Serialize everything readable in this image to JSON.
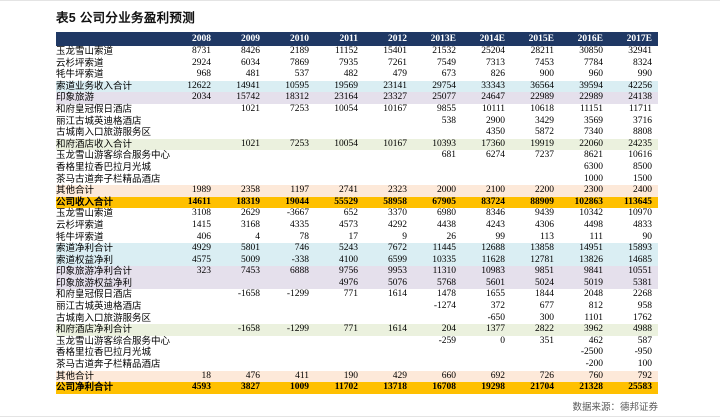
{
  "title": "表5  公司分业务盈利预测",
  "source": "数据来源：德邦证券",
  "colors": {
    "header_bg": "#1F3864",
    "header_text": "#ffffff",
    "band_blue": "#DAEEF3",
    "band_purple": "#E5E0EC",
    "band_green": "#EBF1DE",
    "band_peach": "#FDE9D9",
    "band_gold": "#FFC000"
  },
  "table": {
    "columns": [
      "2008",
      "2009",
      "2010",
      "2011",
      "2012",
      "2013E",
      "2014E",
      "2015E",
      "2016E",
      "2017E"
    ],
    "rows": [
      {
        "label": "玉龙雪山索道",
        "style": "plain",
        "values": [
          "8731",
          "8426",
          "2189",
          "11152",
          "15401",
          "21532",
          "25204",
          "28211",
          "30850",
          "32941"
        ]
      },
      {
        "label": "云杉坪索道",
        "style": "plain",
        "values": [
          "2924",
          "6034",
          "7869",
          "7935",
          "7261",
          "7549",
          "7313",
          "7453",
          "7784",
          "8324"
        ]
      },
      {
        "label": "牦牛坪索道",
        "style": "plain",
        "values": [
          "968",
          "481",
          "537",
          "482",
          "479",
          "673",
          "826",
          "900",
          "960",
          "990"
        ]
      },
      {
        "label": "索道业务收入合计",
        "style": "blue",
        "values": [
          "12622",
          "14941",
          "10595",
          "19569",
          "23141",
          "29754",
          "33343",
          "36564",
          "39594",
          "42256"
        ]
      },
      {
        "label": "印象旅游",
        "style": "purple",
        "values": [
          "2034",
          "15742",
          "18312",
          "23164",
          "23327",
          "25077",
          "24647",
          "22989",
          "22989",
          "24138"
        ]
      },
      {
        "label": "和府皇冠假日酒店",
        "style": "plain",
        "values": [
          "",
          "1021",
          "7253",
          "10054",
          "10167",
          "9855",
          "10111",
          "10618",
          "11151",
          "11711"
        ]
      },
      {
        "label": "丽江古城英迪格酒店",
        "style": "plain",
        "values": [
          "",
          "",
          "",
          "",
          "",
          "538",
          "2900",
          "3429",
          "3569",
          "3716"
        ]
      },
      {
        "label": "古城南入口旅游服务区",
        "style": "plain",
        "values": [
          "",
          "",
          "",
          "",
          "",
          "",
          "4350",
          "5872",
          "7340",
          "8808"
        ]
      },
      {
        "label": "和府酒店收入合计",
        "style": "green",
        "values": [
          "",
          "1021",
          "7253",
          "10054",
          "10167",
          "10393",
          "17360",
          "19919",
          "22060",
          "24235"
        ]
      },
      {
        "label": "玉龙雪山游客综合服务中心",
        "style": "plain",
        "values": [
          "",
          "",
          "",
          "",
          "",
          "681",
          "6274",
          "7237",
          "8621",
          "10616"
        ]
      },
      {
        "label": "香格里拉香巴拉月光城",
        "style": "plain",
        "values": [
          "",
          "",
          "",
          "",
          "",
          "",
          "",
          "",
          "6300",
          "8500"
        ]
      },
      {
        "label": "茶马古道奔子栏精品酒店",
        "style": "plain",
        "values": [
          "",
          "",
          "",
          "",
          "",
          "",
          "",
          "",
          "1000",
          "1500"
        ]
      },
      {
        "label": "其他合计",
        "style": "peach",
        "values": [
          "1989",
          "2358",
          "1197",
          "2741",
          "2323",
          "2000",
          "2100",
          "2200",
          "2300",
          "2400"
        ]
      },
      {
        "label": "公司收入合计",
        "style": "gold",
        "values": [
          "14611",
          "18319",
          "19044",
          "55529",
          "58958",
          "67905",
          "83724",
          "88909",
          "102863",
          "113645"
        ]
      },
      {
        "label": "玉龙雪山索道",
        "style": "plain",
        "values": [
          "3108",
          "2629",
          "-3667",
          "652",
          "3370",
          "6980",
          "8346",
          "9439",
          "10342",
          "10970"
        ]
      },
      {
        "label": "云杉坪索道",
        "style": "plain",
        "values": [
          "1415",
          "3168",
          "4335",
          "4573",
          "4292",
          "4438",
          "4243",
          "4306",
          "4498",
          "4833"
        ]
      },
      {
        "label": "牦牛坪索道",
        "style": "plain",
        "values": [
          "406",
          "4",
          "78",
          "17",
          "9",
          "26",
          "99",
          "113",
          "111",
          "90"
        ]
      },
      {
        "label": "索道净利合计",
        "style": "blue",
        "values": [
          "4929",
          "5801",
          "746",
          "5243",
          "7672",
          "11445",
          "12688",
          "13858",
          "14951",
          "15893"
        ]
      },
      {
        "label": "索道权益净利",
        "style": "blue",
        "values": [
          "4575",
          "5009",
          "-338",
          "4100",
          "6599",
          "10335",
          "11628",
          "12781",
          "13826",
          "14685"
        ]
      },
      {
        "label": "印象旅游净利合计",
        "style": "purple",
        "values": [
          "323",
          "7453",
          "6888",
          "9756",
          "9953",
          "11310",
          "10983",
          "9851",
          "9841",
          "10551"
        ]
      },
      {
        "label": "印象旅游权益净利",
        "style": "purple",
        "values": [
          "",
          "",
          "",
          "4976",
          "5076",
          "5768",
          "5601",
          "5024",
          "5019",
          "5381"
        ]
      },
      {
        "label": "和府皇冠假日酒店",
        "style": "plain",
        "values": [
          "",
          "-1658",
          "-1299",
          "771",
          "1614",
          "1478",
          "1655",
          "1844",
          "2048",
          "2268"
        ]
      },
      {
        "label": "丽江古城英迪格酒店",
        "style": "plain",
        "values": [
          "",
          "",
          "",
          "",
          "",
          "-1274",
          "372",
          "677",
          "812",
          "958"
        ]
      },
      {
        "label": "古城南入口旅游服务区",
        "style": "plain",
        "values": [
          "",
          "",
          "",
          "",
          "",
          "",
          "-650",
          "300",
          "1101",
          "1762"
        ]
      },
      {
        "label": "和府酒店净利合计",
        "style": "green",
        "values": [
          "",
          "-1658",
          "-1299",
          "771",
          "1614",
          "204",
          "1377",
          "2822",
          "3962",
          "4988"
        ]
      },
      {
        "label": "玉龙雪山游客综合服务中心",
        "style": "plain",
        "values": [
          "",
          "",
          "",
          "",
          "",
          "-259",
          "0",
          "351",
          "462",
          "587"
        ]
      },
      {
        "label": "香格里拉香巴拉月光城",
        "style": "plain",
        "values": [
          "",
          "",
          "",
          "",
          "",
          "",
          "",
          "",
          "-2500",
          "-950"
        ]
      },
      {
        "label": "茶马古道奔子栏精品酒店",
        "style": "plain",
        "values": [
          "",
          "",
          "",
          "",
          "",
          "",
          "",
          "",
          "-200",
          "100"
        ]
      },
      {
        "label": "其他合计",
        "style": "peach",
        "values": [
          "18",
          "476",
          "411",
          "190",
          "429",
          "660",
          "692",
          "726",
          "760",
          "792"
        ]
      },
      {
        "label": "公司净利合计",
        "style": "gold",
        "values": [
          "4593",
          "3827",
          "1009",
          "11702",
          "13718",
          "16708",
          "19298",
          "21704",
          "21328",
          "25583"
        ]
      }
    ]
  }
}
